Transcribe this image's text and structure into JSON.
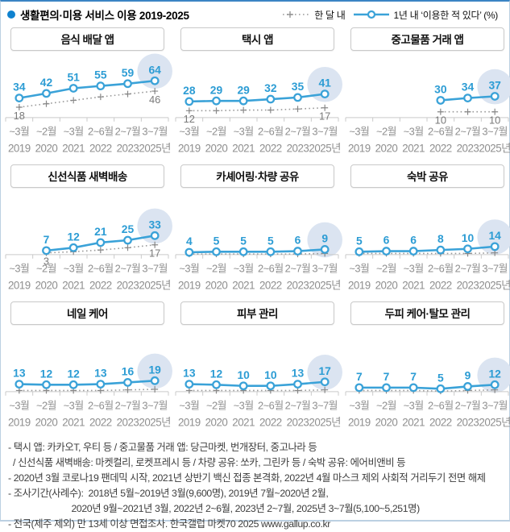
{
  "header": {
    "title": "생활편의·미용 서비스 이용 2019-2025",
    "legend": {
      "month_label": "한 달 내",
      "year_label": "1년 내  ‘이용한 적 있다’ (%)"
    }
  },
  "colors": {
    "accent_blue": "#0f82cf",
    "year_line": "#3aa2d8",
    "value_label": "#2c9cd4",
    "month_line": "#9a9a9a",
    "month_marker": "#878787",
    "month_value_label": "#7a7a7a",
    "axis": "#c9c9c9",
    "tick_label": "#8f8f8f",
    "highlight": "#dbe4f1"
  },
  "x_axis": {
    "months": [
      "~3월",
      "~2월",
      "~3월",
      "2~6월",
      "2~7월",
      "3~7월"
    ],
    "years": [
      "2019",
      "2020",
      "2021",
      "2022",
      "2023",
      "2025년"
    ]
  },
  "chart_data": [
    {
      "type": "line",
      "title": "음식 배달 앱",
      "series": {
        "year_within": {
          "name": "1년 내",
          "start": 0,
          "values": [
            34,
            42,
            51,
            55,
            59,
            64
          ]
        },
        "month_within": {
          "name": "한 달 내",
          "start": 0,
          "values": [
            18,
            24,
            30,
            36,
            41,
            46
          ],
          "shown_labels": [
            {
              "index": 0,
              "value": 18
            },
            {
              "index": 5,
              "value": 46
            }
          ]
        }
      }
    },
    {
      "type": "line",
      "title": "택시 앱",
      "series": {
        "year_within": {
          "name": "1년 내",
          "start": 0,
          "values": [
            28,
            29,
            29,
            32,
            35,
            41
          ]
        },
        "month_within": {
          "name": "한 달 내",
          "start": 0,
          "values": [
            12,
            12,
            13,
            13,
            15,
            17
          ],
          "shown_labels": [
            {
              "index": 0,
              "value": 12
            },
            {
              "index": 5,
              "value": 17
            }
          ]
        }
      }
    },
    {
      "type": "line",
      "title": "중고물품 거래 앱",
      "series": {
        "year_within": {
          "name": "1년 내",
          "start": 3,
          "values": [
            30,
            34,
            37
          ]
        },
        "month_within": {
          "name": "한 달 내",
          "start": 3,
          "values": [
            10,
            10,
            10
          ],
          "shown_labels": [
            {
              "index": 3,
              "value": 10
            },
            {
              "index": 5,
              "value": 10
            }
          ]
        }
      }
    },
    {
      "type": "line",
      "title": "신선식품 새벽배송",
      "series": {
        "year_within": {
          "name": "1년 내",
          "start": 1,
          "values": [
            7,
            12,
            21,
            25,
            33
          ]
        },
        "month_within": {
          "name": "한 달 내",
          "start": 1,
          "values": [
            3,
            5,
            8,
            12,
            17
          ],
          "shown_labels": [
            {
              "index": 1,
              "value": 3
            },
            {
              "index": 5,
              "value": 17
            }
          ]
        }
      }
    },
    {
      "type": "line",
      "title": "카셰어링·차량 공유",
      "series": {
        "year_within": {
          "name": "1년 내",
          "start": 0,
          "values": [
            4,
            5,
            5,
            5,
            6,
            9
          ]
        },
        "month_within": {
          "name": "한 달 내",
          "start": 0,
          "values": [
            1,
            1,
            1,
            1,
            1,
            2
          ],
          "shown_labels": []
        }
      }
    },
    {
      "type": "line",
      "title": "숙박 공유",
      "series": {
        "year_within": {
          "name": "1년 내",
          "start": 0,
          "values": [
            5,
            6,
            6,
            8,
            10,
            14
          ]
        },
        "month_within": {
          "name": "한 달 내",
          "start": 0,
          "values": [
            2,
            2,
            2,
            2,
            2,
            3
          ],
          "shown_labels": []
        }
      }
    },
    {
      "type": "line",
      "title": "네일 케어",
      "series": {
        "year_within": {
          "name": "1년 내",
          "start": 0,
          "values": [
            13,
            12,
            12,
            13,
            16,
            19
          ]
        },
        "month_within": {
          "name": "한 달 내",
          "start": 0,
          "values": [
            2,
            2,
            2,
            2,
            3,
            4
          ],
          "shown_labels": []
        }
      }
    },
    {
      "type": "line",
      "title": "피부 관리",
      "series": {
        "year_within": {
          "name": "1년 내",
          "start": 0,
          "values": [
            13,
            12,
            10,
            10,
            13,
            17
          ]
        },
        "month_within": {
          "name": "한 달 내",
          "start": 0,
          "values": [
            2,
            2,
            2,
            2,
            2,
            3
          ],
          "shown_labels": []
        }
      }
    },
    {
      "type": "line",
      "title": "두피 케어·탈모 관리",
      "series": {
        "year_within": {
          "name": "1년 내",
          "start": 0,
          "values": [
            7,
            7,
            7,
            5,
            9,
            12
          ]
        },
        "month_within": {
          "name": "한 달 내",
          "start": 0,
          "values": [
            2,
            2,
            2,
            1,
            2,
            3
          ],
          "shown_labels": []
        }
      }
    }
  ],
  "footnotes": [
    "- 택시 앱: 카카오T, 우티 등 / 중고물품 거래 앱: 당근마켓, 번개장터, 중고나라 등",
    "  / 신선식품 새벽배송: 마켓컬리, 로켓프레시 등 / 차량 공유: 쏘카, 그린카 등 / 숙박 공유: 에어비앤비 등",
    "- 2020년 3월 코로나19 팬데믹 시작, 2021년 상반기 백신 접종 본격화, 2022년 4월 마스크 제외 사회적 거리두기 전면 해제",
    "- 조사기간(사례수):  2018년 5월~2019년 3월(9,600명), 2019년 7월~2020년 2월,",
    "                          2020년 9월~2021년 3월, 2022년 2~6월, 2023년 2~7월, 2025년 3~7월(5,100~5,251명)",
    "- 전국(제주 제외) 만 13세 이상 면접조사. 한국갤럽 마켓70 2025 www.gallup.co.kr"
  ]
}
